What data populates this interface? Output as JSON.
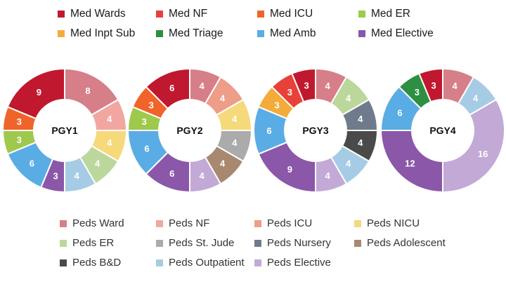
{
  "legend_top": [
    {
      "label": "Med Wards",
      "color": "#c0182e"
    },
    {
      "label": "Med NF",
      "color": "#e8413a"
    },
    {
      "label": "Med ICU",
      "color": "#f0642b"
    },
    {
      "label": "Med ER",
      "color": "#9ec94c"
    },
    {
      "label": "Med Inpt Sub",
      "color": "#f3ab3a"
    },
    {
      "label": "Med Triage",
      "color": "#2c8f41"
    },
    {
      "label": "Med Amb",
      "color": "#5aace4"
    },
    {
      "label": "Med Elective",
      "color": "#8a57a9"
    }
  ],
  "legend_bottom": [
    {
      "label": "Peds Ward",
      "color": "#d67f88"
    },
    {
      "label": "Peds NF",
      "color": "#f2a6a1"
    },
    {
      "label": "Peds ICU",
      "color": "#ee9d88"
    },
    {
      "label": "Peds NICU",
      "color": "#f5d97a"
    },
    {
      "label": "Peds ER",
      "color": "#bcd79b"
    },
    {
      "label": "Peds St. Jude",
      "color": "#ababab"
    },
    {
      "label": "Peds Nursery",
      "color": "#6f7a8c"
    },
    {
      "label": "Peds Adolescent",
      "color": "#a98870"
    },
    {
      "label": "Peds B&D",
      "color": "#4a4a4a"
    },
    {
      "label": "Peds Outpatient",
      "color": "#a6cce5"
    },
    {
      "label": "Peds Elective",
      "color": "#c3a9d6"
    }
  ],
  "chart_data": [
    {
      "type": "pie",
      "title": "PGY1",
      "slices": [
        {
          "category": "Peds Ward",
          "value": 8,
          "color": "#d67f88"
        },
        {
          "category": "Peds NF",
          "value": 4,
          "color": "#f2a6a1"
        },
        {
          "category": "Peds NICU",
          "value": 4,
          "color": "#f5d97a"
        },
        {
          "category": "Peds ER",
          "value": 4,
          "color": "#bcd79b"
        },
        {
          "category": "Peds Outpatient",
          "value": 4,
          "color": "#a6cce5"
        },
        {
          "category": "Med Elective",
          "value": 3,
          "color": "#8a57a9"
        },
        {
          "category": "Med Amb",
          "value": 6,
          "color": "#5aace4"
        },
        {
          "category": "Med ER",
          "value": 3,
          "color": "#9ec94c"
        },
        {
          "category": "Med ICU",
          "value": 3,
          "color": "#f0642b"
        },
        {
          "category": "Med Wards",
          "value": 9,
          "color": "#c0182e"
        }
      ]
    },
    {
      "type": "pie",
      "title": "PGY2",
      "slices": [
        {
          "category": "Peds Ward",
          "value": 4,
          "color": "#d67f88"
        },
        {
          "category": "Peds ICU",
          "value": 4,
          "color": "#ee9d88"
        },
        {
          "category": "Peds NICU",
          "value": 4,
          "color": "#f5d97a"
        },
        {
          "category": "Peds St. Jude",
          "value": 4,
          "color": "#ababab"
        },
        {
          "category": "Peds Adolescent",
          "value": 4,
          "color": "#a98870"
        },
        {
          "category": "Peds Elective",
          "value": 4,
          "color": "#c3a9d6"
        },
        {
          "category": "Med Elective",
          "value": 6,
          "color": "#8a57a9"
        },
        {
          "category": "Med Amb",
          "value": 6,
          "color": "#5aace4"
        },
        {
          "category": "Med ER",
          "value": 3,
          "color": "#9ec94c"
        },
        {
          "category": "Med ICU",
          "value": 3,
          "color": "#f0642b"
        },
        {
          "category": "Med Wards",
          "value": 6,
          "color": "#c0182e"
        }
      ]
    },
    {
      "type": "pie",
      "title": "PGY3",
      "slices": [
        {
          "category": "Peds Ward",
          "value": 4,
          "color": "#d67f88"
        },
        {
          "category": "Peds ER",
          "value": 4,
          "color": "#bcd79b"
        },
        {
          "category": "Peds Nursery",
          "value": 4,
          "color": "#6f7a8c"
        },
        {
          "category": "Peds B&D",
          "value": 4,
          "color": "#4a4a4a"
        },
        {
          "category": "Peds Outpatient",
          "value": 4,
          "color": "#a6cce5"
        },
        {
          "category": "Peds Elective",
          "value": 4,
          "color": "#c3a9d6"
        },
        {
          "category": "Med Elective",
          "value": 9,
          "color": "#8a57a9"
        },
        {
          "category": "Med Amb",
          "value": 6,
          "color": "#5aace4"
        },
        {
          "category": "Med Inpt Sub",
          "value": 3,
          "color": "#f3ab3a"
        },
        {
          "category": "Med NF",
          "value": 3,
          "color": "#e8413a"
        },
        {
          "category": "Med Wards",
          "value": 3,
          "color": "#c0182e"
        }
      ]
    },
    {
      "type": "pie",
      "title": "PGY4",
      "slices": [
        {
          "category": "Peds Ward",
          "value": 4,
          "color": "#d67f88"
        },
        {
          "category": "Peds Outpatient",
          "value": 4,
          "color": "#a6cce5"
        },
        {
          "category": "Peds Elective",
          "value": 16,
          "color": "#c3a9d6"
        },
        {
          "category": "Med Elective",
          "value": 12,
          "color": "#8a57a9"
        },
        {
          "category": "Med Amb",
          "value": 6,
          "color": "#5aace4"
        },
        {
          "category": "Med Triage",
          "value": 3,
          "color": "#2c8f41"
        },
        {
          "category": "Med Wards",
          "value": 3,
          "color": "#c0182e"
        }
      ]
    }
  ]
}
